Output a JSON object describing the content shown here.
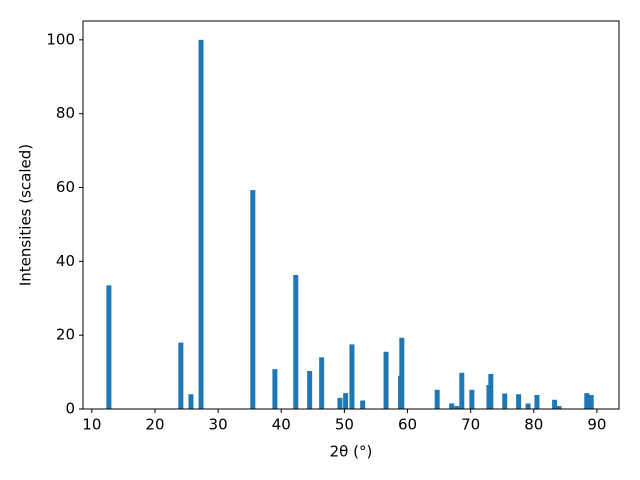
{
  "chart_data": {
    "type": "bar",
    "xlabel": "2θ (°)",
    "ylabel": "Intensities (scaled)",
    "color": "#1f77b4",
    "x": [
      12.7,
      24.1,
      25.7,
      27.3,
      35.5,
      39.0,
      42.3,
      44.5,
      46.4,
      49.3,
      50.2,
      51.2,
      52.9,
      56.6,
      58.9,
      59.1,
      64.7,
      67.0,
      67.8,
      68.6,
      70.2,
      72.9,
      73.2,
      75.4,
      77.6,
      79.1,
      80.5,
      83.3,
      84.0,
      88.4,
      89.1
    ],
    "values": [
      33.5,
      18,
      4,
      100,
      59.3,
      10.8,
      36.3,
      10.3,
      14,
      3,
      4.3,
      17.5,
      2.3,
      15.5,
      9,
      19.3,
      5.2,
      1.5,
      0.8,
      9.8,
      5.2,
      6.5,
      9.5,
      4.2,
      4,
      1.5,
      3.8,
      2.5,
      0.8,
      4.3,
      3.8
    ],
    "xlim": [
      8.6,
      93.5
    ],
    "ylim": [
      0,
      105.1
    ],
    "xticks": [
      10,
      20,
      30,
      40,
      50,
      60,
      70,
      80,
      90
    ],
    "yticks": [
      0,
      20,
      40,
      60,
      80,
      100
    ]
  }
}
